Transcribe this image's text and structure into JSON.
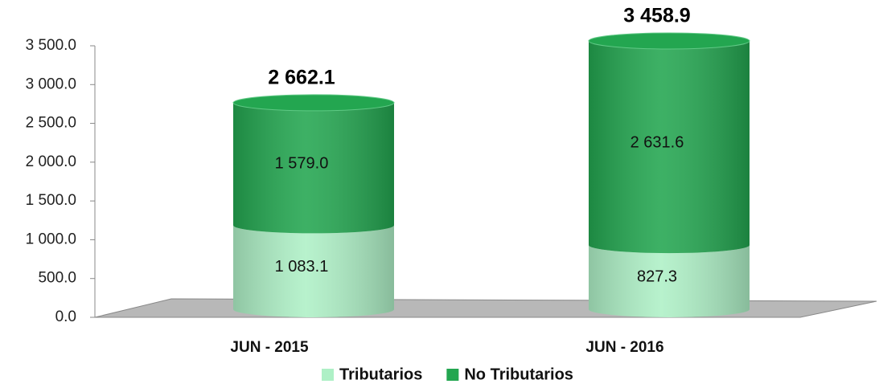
{
  "chart_data": {
    "type": "stacked-cylinder",
    "categories": [
      "JUN - 2015",
      "JUN - 2016"
    ],
    "series": [
      {
        "name": "Tributarios",
        "color": "#aef0c6",
        "values": [
          1083.1,
          827.3
        ],
        "value_labels": [
          "1 083.1",
          "827.3"
        ]
      },
      {
        "name": "No Tributarios",
        "color": "#23a650",
        "values": [
          1579.0,
          2631.6
        ],
        "value_labels": [
          "1 579.0",
          "2 631.6"
        ]
      }
    ],
    "totals": [
      2662.1,
      3458.9
    ],
    "total_labels": [
      "2 662.1",
      "3 458.9"
    ],
    "ylim": [
      0,
      3500
    ],
    "yticks": [
      {
        "value": 0,
        "label": "0.0"
      },
      {
        "value": 500,
        "label": "500.0"
      },
      {
        "value": 1000,
        "label": "1 000.0"
      },
      {
        "value": 1500,
        "label": "1 500.0"
      },
      {
        "value": 2000,
        "label": "2 000.0"
      },
      {
        "value": 2500,
        "label": "2 500.0"
      },
      {
        "value": 3000,
        "label": "3 000.0"
      },
      {
        "value": 3500,
        "label": "3 500.0"
      }
    ],
    "legend": "bottom"
  }
}
